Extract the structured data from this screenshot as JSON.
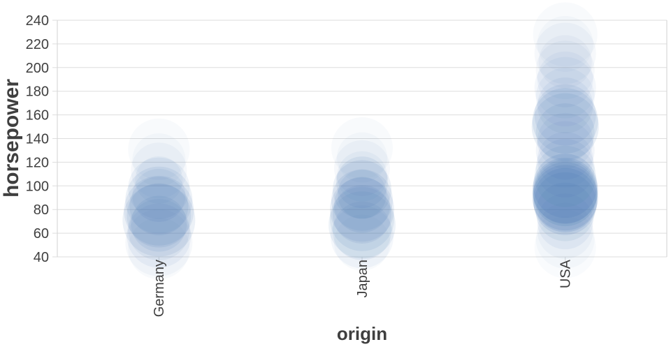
{
  "chart_data": {
    "type": "scatter",
    "subtype": "bubble-strip-plot",
    "title": "",
    "xlabel": "origin",
    "ylabel": "horsepower",
    "categories": [
      "Germany",
      "Japan",
      "USA"
    ],
    "y_ticks": [
      40,
      60,
      80,
      100,
      120,
      140,
      160,
      180,
      200,
      220,
      240
    ],
    "ylim": [
      40,
      240
    ],
    "grid": true,
    "legend": "none",
    "mark_color": "#4678b4",
    "axis_text_color": "#3f3f3f",
    "grid_color": "#dddddd",
    "domain_color": "#d2d2d2",
    "series": [
      {
        "name": "Germany",
        "points": [
          {
            "hp": 131,
            "r": 44,
            "opacity": 0.04
          },
          {
            "hp": 122,
            "r": 38,
            "opacity": 0.04
          },
          {
            "hp": 113,
            "r": 40,
            "opacity": 0.05
          },
          {
            "hp": 105,
            "r": 34,
            "opacity": 0.06
          },
          {
            "hp": 98,
            "r": 44,
            "opacity": 0.08
          },
          {
            "hp": 92,
            "r": 38,
            "opacity": 0.08
          },
          {
            "hp": 88,
            "r": 48,
            "opacity": 0.1
          },
          {
            "hp": 83,
            "r": 42,
            "opacity": 0.1
          },
          {
            "hp": 79,
            "r": 50,
            "opacity": 0.11
          },
          {
            "hp": 75,
            "r": 46,
            "opacity": 0.11
          },
          {
            "hp": 71,
            "r": 52,
            "opacity": 0.1
          },
          {
            "hp": 68,
            "r": 40,
            "opacity": 0.1
          },
          {
            "hp": 63,
            "r": 44,
            "opacity": 0.08
          },
          {
            "hp": 58,
            "r": 46,
            "opacity": 0.07
          },
          {
            "hp": 52,
            "r": 48,
            "opacity": 0.05
          },
          {
            "hp": 47,
            "r": 44,
            "opacity": 0.04
          }
        ]
      },
      {
        "name": "Japan",
        "points": [
          {
            "hp": 132,
            "r": 44,
            "opacity": 0.04
          },
          {
            "hp": 124,
            "r": 36,
            "opacity": 0.04
          },
          {
            "hp": 115,
            "r": 40,
            "opacity": 0.05
          },
          {
            "hp": 108,
            "r": 36,
            "opacity": 0.06
          },
          {
            "hp": 103,
            "r": 37,
            "opacity": 0.1
          },
          {
            "hp": 97,
            "r": 42,
            "opacity": 0.1
          },
          {
            "hp": 93,
            "r": 35,
            "opacity": 0.09
          },
          {
            "hp": 88,
            "r": 44,
            "opacity": 0.11
          },
          {
            "hp": 84,
            "r": 40,
            "opacity": 0.11
          },
          {
            "hp": 80,
            "r": 46,
            "opacity": 0.11
          },
          {
            "hp": 76,
            "r": 42,
            "opacity": 0.1
          },
          {
            "hp": 72,
            "r": 46,
            "opacity": 0.1
          },
          {
            "hp": 67,
            "r": 48,
            "opacity": 0.09
          },
          {
            "hp": 62,
            "r": 42,
            "opacity": 0.08
          },
          {
            "hp": 57,
            "r": 45,
            "opacity": 0.06
          },
          {
            "hp": 52,
            "r": 40,
            "opacity": 0.04
          }
        ]
      },
      {
        "name": "USA",
        "points": [
          {
            "hp": 228,
            "r": 46,
            "opacity": 0.04
          },
          {
            "hp": 220,
            "r": 40,
            "opacity": 0.04
          },
          {
            "hp": 212,
            "r": 44,
            "opacity": 0.05
          },
          {
            "hp": 205,
            "r": 38,
            "opacity": 0.05
          },
          {
            "hp": 198,
            "r": 42,
            "opacity": 0.05
          },
          {
            "hp": 190,
            "r": 40,
            "opacity": 0.06
          },
          {
            "hp": 183,
            "r": 44,
            "opacity": 0.06
          },
          {
            "hp": 175,
            "r": 42,
            "opacity": 0.06
          },
          {
            "hp": 168,
            "r": 40,
            "opacity": 0.07
          },
          {
            "hp": 160,
            "r": 44,
            "opacity": 0.1
          },
          {
            "hp": 155,
            "r": 47,
            "opacity": 0.12
          },
          {
            "hp": 150,
            "r": 48,
            "opacity": 0.12
          },
          {
            "hp": 145,
            "r": 42,
            "opacity": 0.1
          },
          {
            "hp": 138,
            "r": 40,
            "opacity": 0.07
          },
          {
            "hp": 130,
            "r": 42,
            "opacity": 0.07
          },
          {
            "hp": 122,
            "r": 40,
            "opacity": 0.07
          },
          {
            "hp": 115,
            "r": 42,
            "opacity": 0.08
          },
          {
            "hp": 108,
            "r": 44,
            "opacity": 0.09
          },
          {
            "hp": 100,
            "r": 46,
            "opacity": 0.16
          },
          {
            "hp": 96,
            "r": 47,
            "opacity": 0.16
          },
          {
            "hp": 95,
            "r": 46,
            "opacity": 0.14
          },
          {
            "hp": 93,
            "r": 46,
            "opacity": 0.16
          },
          {
            "hp": 90,
            "r": 47,
            "opacity": 0.16
          },
          {
            "hp": 88,
            "r": 46,
            "opacity": 0.16
          },
          {
            "hp": 85,
            "r": 45,
            "opacity": 0.14
          },
          {
            "hp": 78,
            "r": 42,
            "opacity": 0.1
          },
          {
            "hp": 70,
            "r": 40,
            "opacity": 0.07
          },
          {
            "hp": 62,
            "r": 40,
            "opacity": 0.05
          },
          {
            "hp": 55,
            "r": 42,
            "opacity": 0.04
          },
          {
            "hp": 48,
            "r": 44,
            "opacity": 0.03
          }
        ]
      }
    ]
  }
}
